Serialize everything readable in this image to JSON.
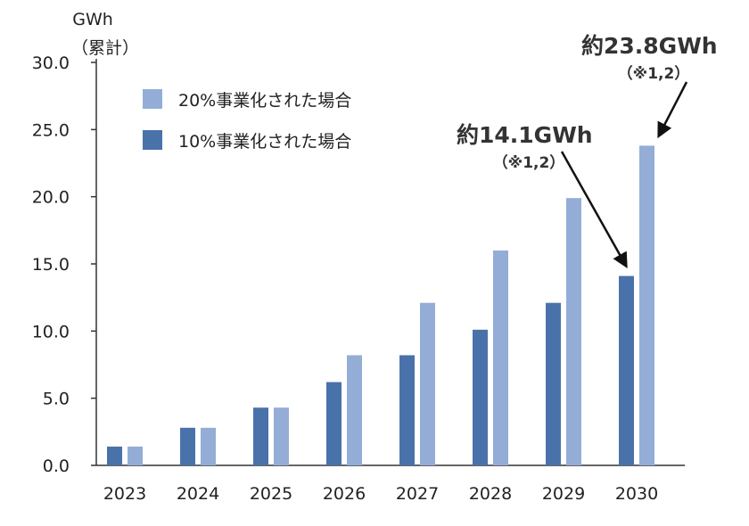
{
  "chart_data": {
    "type": "bar",
    "y_unit": "GWh",
    "y_unit_sub": "（累計）",
    "categories": [
      "2023",
      "2024",
      "2025",
      "2026",
      "2027",
      "2028",
      "2029",
      "2030"
    ],
    "series": [
      {
        "name": "10%事業化された場合",
        "color": "#4a72aa",
        "values": [
          1.4,
          2.8,
          4.3,
          6.2,
          8.2,
          10.1,
          12.1,
          14.1
        ]
      },
      {
        "name": "20%事業化された場合",
        "color": "#94add6",
        "values": [
          1.4,
          2.8,
          4.3,
          8.2,
          12.1,
          16.0,
          19.9,
          23.8
        ]
      }
    ],
    "ylim": [
      0,
      30
    ],
    "yticks": [
      "0.0",
      "5.0",
      "10.0",
      "15.0",
      "20.0",
      "25.0",
      "30.0"
    ],
    "legend_order": [
      1,
      0
    ],
    "annotations": [
      {
        "text": "約14.1GWh",
        "subtext": "（※1,2）",
        "category": "2030",
        "series": 0,
        "value": 14.1
      },
      {
        "text": "約23.8GWh",
        "subtext": "（※1,2）",
        "category": "2030",
        "series": 1,
        "value": 23.8
      }
    ]
  }
}
